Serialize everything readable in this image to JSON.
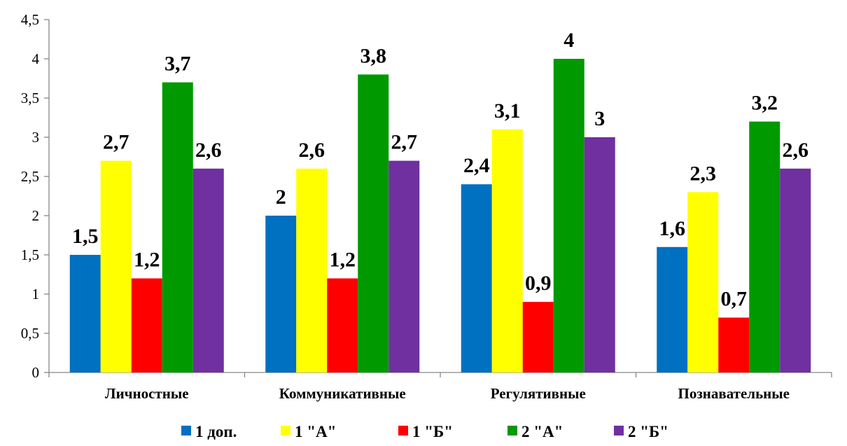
{
  "chart_data": {
    "type": "bar",
    "categories": [
      "Личностные",
      "Коммуникативные",
      "Регулятивные",
      "Познавательные"
    ],
    "series": [
      {
        "name": "1 доп.",
        "color": "#0070C0",
        "values": [
          1.5,
          2,
          2.4,
          1.6
        ],
        "labels": [
          "1,5",
          "2",
          "2,4",
          "1,6"
        ]
      },
      {
        "name": "1 \"А\"",
        "color": "#FFFF00",
        "values": [
          2.7,
          2.6,
          3.1,
          2.3
        ],
        "labels": [
          "2,7",
          "2,6",
          "3,1",
          "2,3"
        ]
      },
      {
        "name": "1 \"Б\"",
        "color": "#FF0000",
        "values": [
          1.2,
          1.2,
          0.9,
          0.7
        ],
        "labels": [
          "1,2",
          "1,2",
          "0,9",
          "0,7"
        ]
      },
      {
        "name": "2 \"А\"",
        "color": "#009900",
        "values": [
          3.7,
          3.8,
          4,
          3.2
        ],
        "labels": [
          "3,7",
          "3,8",
          "4",
          "3,2"
        ]
      },
      {
        "name": "2 \"Б\"",
        "color": "#7030A0",
        "values": [
          2.6,
          2.7,
          3,
          2.6
        ],
        "labels": [
          "2,6",
          "2,7",
          "3",
          "2,6"
        ]
      }
    ],
    "y_ticks": [
      "0",
      "0,5",
      "1",
      "1,5",
      "2",
      "2,5",
      "3",
      "3,5",
      "4",
      "4,5"
    ],
    "ylim": [
      0,
      4.5
    ],
    "grid": false,
    "legend": "bottom"
  }
}
